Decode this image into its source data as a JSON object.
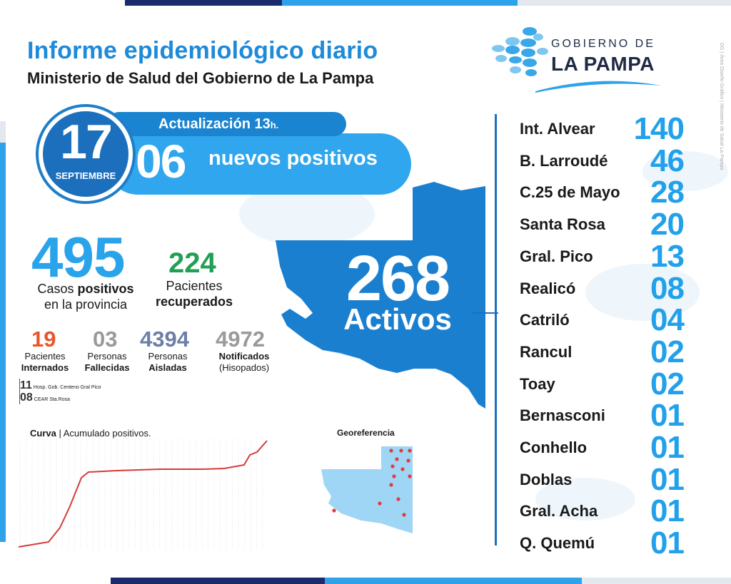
{
  "header": {
    "title": "Informe epidemiológico diario",
    "subtitle": "Ministerio de Salud del Gobierno de La Pampa"
  },
  "logo": {
    "line1": "GOBIERNO DE",
    "line2": "LA PAMPA"
  },
  "credit": "DG | Área Diseño Gráfico | Ministerio de Salud La Pampa",
  "update": {
    "label": "Actualización 13",
    "suffix": "h.",
    "new_positives_value": "06",
    "new_positives_label": "nuevos positivos"
  },
  "date": {
    "day": "17",
    "month": "SEPTIEMBRE"
  },
  "totals": {
    "positives_value": "495",
    "positives_label_1": "Casos ",
    "positives_label_bold": "positivos",
    "positives_label_2": "en la provincia",
    "recovered_value": "224",
    "recovered_label_1": "Pacientes",
    "recovered_label_bold": "recuperados"
  },
  "stats": [
    {
      "value": "19",
      "label1": "Pacientes",
      "label2": "Internados"
    },
    {
      "value": "03",
      "label1": "Personas",
      "label2": "Fallecidas"
    },
    {
      "value": "4394",
      "label1": "Personas",
      "label2": "Aisladas"
    },
    {
      "value": "4972",
      "label1": "Notificados",
      "label2": "(Hisopados)"
    }
  ],
  "hospitalized_breakdown": [
    {
      "count": "11",
      "place": "Hosp. Gob. Centeno Gral Pico"
    },
    {
      "count": "08",
      "place": "CEAR Sta.Rosa"
    }
  ],
  "active": {
    "value": "268",
    "label": "Activos"
  },
  "colors": {
    "primary_blue": "#1e8ad8",
    "dark_blue": "#1b70bd",
    "light_blue": "#2fa6ee",
    "green": "#21a055",
    "orange": "#e8562a",
    "gray": "#9a9a9a",
    "slate": "#6c7fa8",
    "map_dot": "#e23b3b"
  },
  "localities": [
    {
      "name": "Int. Alvear",
      "value": "140"
    },
    {
      "name": "B. Larroudé",
      "value": "46"
    },
    {
      "name": "C.25 de Mayo",
      "value": "28"
    },
    {
      "name": "Santa Rosa",
      "value": "20"
    },
    {
      "name": "Gral. Pico",
      "value": "13"
    },
    {
      "name": "Realicó",
      "value": "08"
    },
    {
      "name": "Catriló",
      "value": "04"
    },
    {
      "name": "Rancul",
      "value": "02"
    },
    {
      "name": "Toay",
      "value": "02"
    },
    {
      "name": "Bernasconi",
      "value": "01"
    },
    {
      "name": "Conhello",
      "value": "01"
    },
    {
      "name": "Doblas",
      "value": "01"
    },
    {
      "name": "Gral. Acha",
      "value": "01"
    },
    {
      "name": "Q. Quemú",
      "value": "01"
    }
  ],
  "curve": {
    "title_bold": "Curva",
    "title_rest": " | Acumulado positivos."
  },
  "georef": {
    "title": "Georeferencia"
  }
}
